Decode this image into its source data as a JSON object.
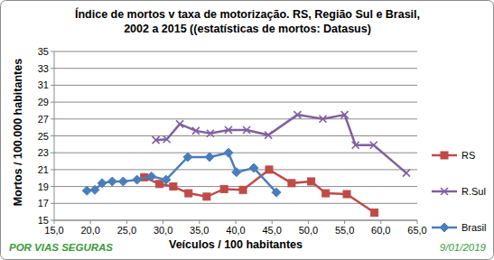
{
  "chart_data": {
    "type": "line",
    "title": [
      "Índice de mortos v taxa de motorização. RS, Região Sul e Brasil,",
      "2002 a 2015 ((estatísticas de mortos: Datasus)"
    ],
    "x_label": "Veículos / 100 habitantes",
    "y_label": "Mortos / 100.000 habitantes",
    "annotations": [
      "POR VIAS SEGURAS",
      "9/01/2019"
    ],
    "xlim": [
      15,
      65
    ],
    "xticks": [
      {
        "value": 15,
        "label": "15,0"
      },
      {
        "value": 20,
        "label": "20,0"
      },
      {
        "value": 25,
        "label": "25,0"
      },
      {
        "value": 30,
        "label": "30,0"
      },
      {
        "value": 35,
        "label": "35,0"
      },
      {
        "value": 40,
        "label": "40,0"
      },
      {
        "value": 45,
        "label": "45,0"
      },
      {
        "value": 50,
        "label": "50,0"
      },
      {
        "value": 55,
        "label": "55,0"
      },
      {
        "value": 60,
        "label": "60,0"
      },
      {
        "value": 65,
        "label": "65,0"
      }
    ],
    "ylim": [
      15,
      35
    ],
    "yticks": [
      15,
      17,
      19,
      21,
      23,
      25,
      27,
      29,
      31,
      33,
      35
    ],
    "grid": true,
    "legend": "right",
    "series": [
      {
        "name": "RS",
        "color": "#be4b48",
        "marker": "square",
        "line_style": "solid",
        "x": [
          27.4,
          29.5,
          31.4,
          33.5,
          36.0,
          38.4,
          41.0,
          44.6,
          47.7,
          50.4,
          52.4,
          55.3,
          59.1
        ],
        "values": [
          20.1,
          19.3,
          19.0,
          18.2,
          17.8,
          18.7,
          18.6,
          21.0,
          19.4,
          19.6,
          18.2,
          18.1,
          15.9
        ]
      },
      {
        "name": "R.Sul",
        "color": "#7f60a0",
        "marker": "x",
        "line_style": "solid",
        "x": [
          29.0,
          30.5,
          32.3,
          34.5,
          36.5,
          39.0,
          41.5,
          44.5,
          48.5,
          52.0,
          55.0,
          56.5,
          59.0,
          63.5
        ],
        "values": [
          24.5,
          24.6,
          26.4,
          25.6,
          25.3,
          25.7,
          25.7,
          25.1,
          27.5,
          27.0,
          27.5,
          23.9,
          23.9,
          20.6
        ]
      },
      {
        "name": "Brasil",
        "color": "#4a7ebb",
        "marker": "diamond",
        "line_style": "solid",
        "x": [
          19.5,
          20.6,
          21.6,
          23.0,
          24.5,
          26.4,
          28.4,
          30.4,
          33.4,
          36.4,
          39.0,
          40.1,
          42.5,
          45.6
        ],
        "values": [
          18.5,
          18.6,
          19.4,
          19.6,
          19.6,
          19.8,
          20.2,
          19.8,
          22.5,
          22.5,
          23.0,
          20.7,
          21.2,
          18.3
        ]
      }
    ]
  }
}
